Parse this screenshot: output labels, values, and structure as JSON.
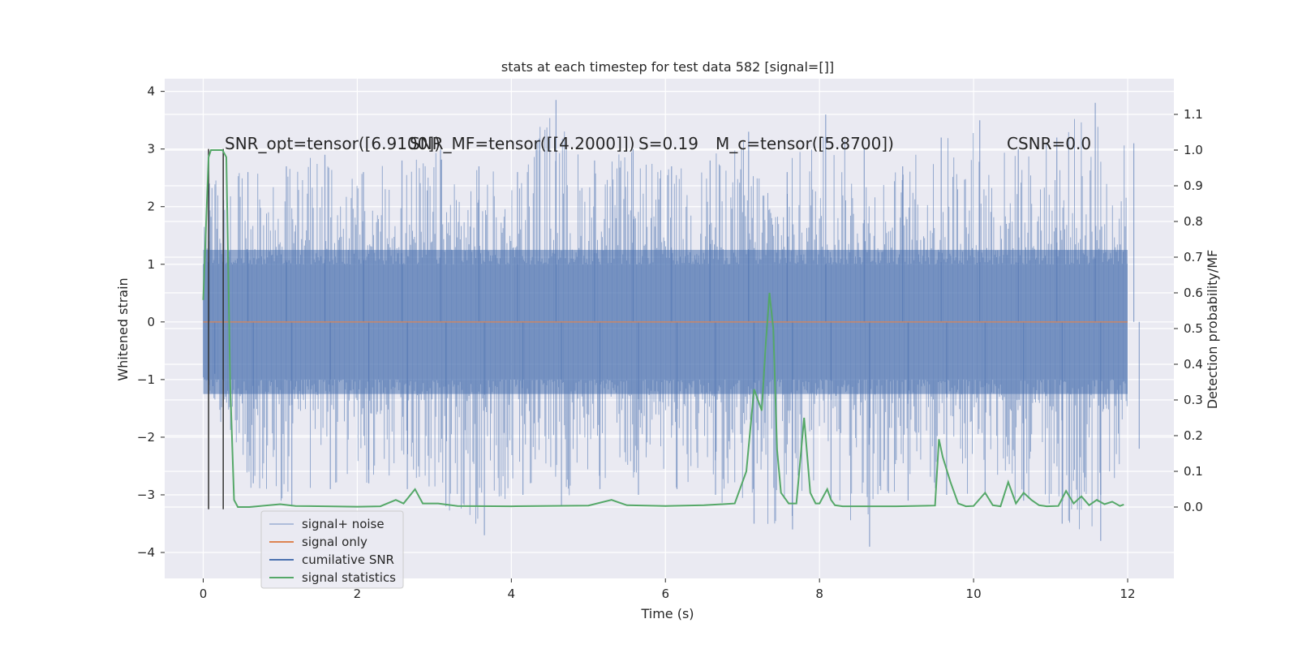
{
  "chart_data": {
    "type": "line",
    "title": "stats at each timestep for test data 582 [signal=[]]",
    "xlabel": "Time (s)",
    "ylabel": "Whitened strain",
    "y2label": "Detection probability/MF",
    "xlim": [
      -0.5,
      12.6
    ],
    "ylim": [
      -4.45,
      4.22
    ],
    "y2lim": [
      -0.2,
      1.2
    ],
    "x_ticks": [
      0,
      2,
      4,
      6,
      8,
      10,
      12
    ],
    "y_ticks": [
      -4,
      -3,
      -2,
      -1,
      0,
      1,
      2,
      3,
      4
    ],
    "y2_ticks": [
      0.0,
      0.1,
      0.2,
      0.3,
      0.4,
      0.5,
      0.6,
      0.7,
      0.8,
      0.9,
      1.0,
      1.1
    ],
    "grid": true,
    "legend_position": "lower-left",
    "annotations": {
      "snr_opt": "SNR_opt=tensor([6.9100])",
      "snr_mf": "SNR_MF=tensor([[4.2000]])",
      "s": "S=0.19",
      "mc": "M_c=tensor([5.8700])",
      "csnr": "CSNR=0.0"
    },
    "series": [
      {
        "name": "signal+ noise",
        "color": "#4c72b0",
        "style": "dense Gaussian noise, amplitude mostly within ±1.8, peaks to about ±4",
        "x_range": [
          0,
          12
        ],
        "envelope": [
          [
            0.0,
            2.4,
            -0.9
          ],
          [
            0.5,
            2.6,
            -2.8
          ],
          [
            1.0,
            2.7,
            -3.2
          ],
          [
            1.5,
            2.9,
            -2.9
          ],
          [
            2.0,
            2.6,
            -2.8
          ],
          [
            2.5,
            2.8,
            -2.9
          ],
          [
            3.0,
            3.0,
            -3.2
          ],
          [
            3.5,
            2.7,
            -3.7
          ],
          [
            4.0,
            2.6,
            -3.0
          ],
          [
            4.5,
            3.85,
            -3.2
          ],
          [
            5.0,
            2.8,
            -2.9
          ],
          [
            5.5,
            3.0,
            -3.0
          ],
          [
            6.0,
            2.7,
            -2.9
          ],
          [
            6.5,
            2.8,
            -3.0
          ],
          [
            7.0,
            3.3,
            -3.5
          ],
          [
            7.5,
            2.6,
            -3.6
          ],
          [
            8.0,
            3.6,
            -3.1
          ],
          [
            8.5,
            3.0,
            -3.9
          ],
          [
            9.0,
            2.7,
            -3.1
          ],
          [
            9.5,
            3.2,
            -3.0
          ],
          [
            10.0,
            3.5,
            -3.0
          ],
          [
            10.5,
            3.0,
            -3.1
          ],
          [
            11.0,
            3.2,
            -3.5
          ],
          [
            11.5,
            3.8,
            -3.8
          ],
          [
            12.0,
            3.1,
            -2.2
          ]
        ]
      },
      {
        "name": "signal only",
        "color": "#dd8452",
        "x": [
          0,
          12
        ],
        "y": [
          0,
          0
        ]
      },
      {
        "name": "cumilative SNR",
        "color": "#4c72b0",
        "x": [],
        "y": []
      },
      {
        "name": "signal statistics",
        "color": "#55a868",
        "axis": "right",
        "x": [
          0.0,
          0.07,
          0.1,
          0.15,
          0.2,
          0.25,
          0.3,
          0.35,
          0.4,
          0.45,
          0.5,
          0.6,
          1.0,
          1.2,
          1.6,
          2.0,
          2.3,
          2.5,
          2.6,
          2.75,
          2.85,
          2.95,
          3.05,
          3.3,
          4.0,
          5.0,
          5.3,
          5.5,
          6.0,
          6.5,
          6.9,
          7.05,
          7.15,
          7.25,
          7.3,
          7.35,
          7.4,
          7.45,
          7.5,
          7.6,
          7.7,
          7.8,
          7.88,
          7.95,
          8.0,
          8.05,
          8.1,
          8.15,
          8.2,
          8.3,
          8.6,
          9.0,
          9.5,
          9.55,
          9.6,
          9.7,
          9.8,
          9.9,
          10.0,
          10.15,
          10.25,
          10.35,
          10.45,
          10.55,
          10.65,
          10.75,
          10.85,
          10.95,
          11.1,
          11.2,
          11.3,
          11.4,
          11.5,
          11.6,
          11.7,
          11.8,
          11.9,
          11.95
        ],
        "y": [
          0.58,
          0.98,
          1.0,
          1.0,
          1.0,
          1.0,
          0.98,
          0.35,
          0.02,
          0.0,
          0.0,
          0.0,
          0.008,
          0.003,
          0.002,
          0.001,
          0.002,
          0.02,
          0.01,
          0.05,
          0.01,
          0.01,
          0.01,
          0.003,
          0.002,
          0.004,
          0.02,
          0.005,
          0.003,
          0.005,
          0.01,
          0.1,
          0.33,
          0.27,
          0.45,
          0.6,
          0.5,
          0.16,
          0.04,
          0.01,
          0.01,
          0.25,
          0.04,
          0.01,
          0.01,
          0.03,
          0.05,
          0.02,
          0.005,
          0.002,
          0.002,
          0.002,
          0.004,
          0.19,
          0.14,
          0.07,
          0.01,
          0.002,
          0.003,
          0.04,
          0.005,
          0.002,
          0.07,
          0.01,
          0.04,
          0.02,
          0.005,
          0.002,
          0.003,
          0.045,
          0.01,
          0.03,
          0.005,
          0.02,
          0.008,
          0.015,
          0.003,
          0.007
        ]
      }
    ],
    "vertical_lines": [
      {
        "x": 0.07,
        "y_from": -3.25,
        "y_to": 3.0,
        "color": "#333333"
      },
      {
        "x": 0.26,
        "y_from": -3.25,
        "y_to": 3.0,
        "color": "#333333"
      }
    ],
    "legend": [
      "signal+ noise",
      "signal only",
      "cumilative SNR",
      "signal statistics"
    ]
  }
}
